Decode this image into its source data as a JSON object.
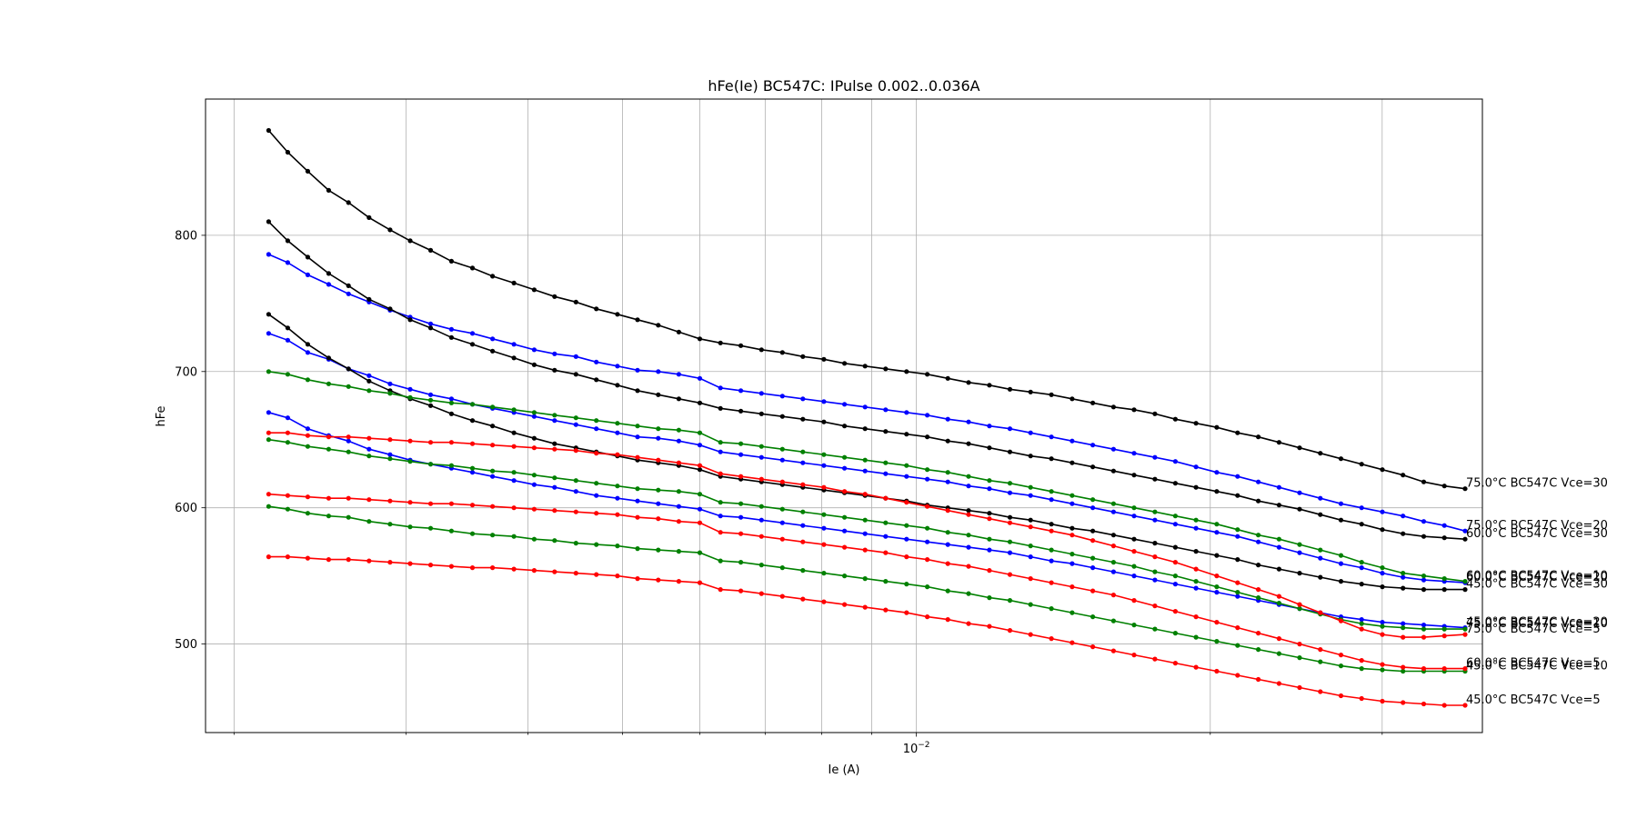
{
  "chart_data": {
    "type": "line",
    "title": "hFe(Ie) BC547C: IPulse 0.002..0.036A",
    "xlabel": "Ie (A)",
    "ylabel": "hFe",
    "xscale": "log",
    "xlim": [
      0.00187,
      0.038
    ],
    "ylim": [
      435,
      900
    ],
    "grid": true,
    "x_ticks": [
      {
        "value": 0.01,
        "label": "10",
        "exponent": "−2"
      }
    ],
    "x_minor_ticks": [
      0.002,
      0.003,
      0.004,
      0.005,
      0.006,
      0.007,
      0.008,
      0.009,
      0.02,
      0.03
    ],
    "y_ticks": [
      500,
      600,
      700,
      800
    ],
    "x": [
      0.00217,
      0.00227,
      0.00238,
      0.0025,
      0.00262,
      0.00275,
      0.00289,
      0.00303,
      0.00318,
      0.00334,
      0.00351,
      0.00368,
      0.00387,
      0.00406,
      0.00426,
      0.00448,
      0.0047,
      0.00494,
      0.00518,
      0.00544,
      0.00571,
      0.006,
      0.0063,
      0.00661,
      0.00694,
      0.00729,
      0.00765,
      0.00804,
      0.00844,
      0.00886,
      0.0093,
      0.00977,
      0.01026,
      0.01077,
      0.01131,
      0.01188,
      0.01247,
      0.01309,
      0.01375,
      0.01444,
      0.01516,
      0.01592,
      0.01671,
      0.01755,
      0.01842,
      0.01934,
      0.02031,
      0.02133,
      0.0224,
      0.02352,
      0.02469,
      0.02593,
      0.02722,
      0.02858,
      0.03001,
      0.03151,
      0.03309,
      0.03474,
      0.03648
    ],
    "series": [
      {
        "name": "75.0°C BC547C Vce=30",
        "color": "#000000",
        "values": [
          877,
          861,
          847,
          833,
          824,
          813,
          804,
          796,
          789,
          781,
          776,
          770,
          765,
          760,
          755,
          751,
          746,
          742,
          738,
          734,
          729,
          724,
          721,
          719,
          716,
          714,
          711,
          709,
          706,
          704,
          702,
          700,
          698,
          695,
          692,
          690,
          687,
          685,
          683,
          680,
          677,
          674,
          672,
          669,
          665,
          662,
          659,
          655,
          652,
          648,
          644,
          640,
          636,
          632,
          628,
          624,
          619,
          616,
          614
        ]
      },
      {
        "name": "75.0°C BC547C Vce=20",
        "color": "#0000ff",
        "values": [
          786,
          780,
          771,
          764,
          757,
          751,
          745,
          740,
          735,
          731,
          728,
          724,
          720,
          716,
          713,
          711,
          707,
          704,
          701,
          700,
          698,
          695,
          688,
          686,
          684,
          682,
          680,
          678,
          676,
          674,
          672,
          670,
          668,
          665,
          663,
          660,
          658,
          655,
          652,
          649,
          646,
          643,
          640,
          637,
          634,
          630,
          626,
          623,
          619,
          615,
          611,
          607,
          603,
          600,
          597,
          594,
          590,
          587,
          583
        ]
      },
      {
        "name": "60.0°C BC547C Vce=30",
        "color": "#000000",
        "values": [
          810,
          796,
          784,
          772,
          763,
          753,
          746,
          738,
          732,
          725,
          720,
          715,
          710,
          705,
          701,
          698,
          694,
          690,
          686,
          683,
          680,
          677,
          673,
          671,
          669,
          667,
          665,
          663,
          660,
          658,
          656,
          654,
          652,
          649,
          647,
          644,
          641,
          638,
          636,
          633,
          630,
          627,
          624,
          621,
          618,
          615,
          612,
          609,
          605,
          602,
          599,
          595,
          591,
          588,
          584,
          581,
          579,
          578,
          577
        ]
      },
      {
        "name": "60.0°C BC547C Vce=20",
        "color": "#0000ff",
        "values": [
          728,
          723,
          714,
          709,
          702,
          697,
          691,
          687,
          683,
          680,
          676,
          673,
          670,
          667,
          664,
          661,
          658,
          655,
          652,
          651,
          649,
          646,
          641,
          639,
          637,
          635,
          633,
          631,
          629,
          627,
          625,
          623,
          621,
          619,
          616,
          614,
          611,
          609,
          606,
          603,
          600,
          597,
          594,
          591,
          588,
          585,
          582,
          579,
          575,
          571,
          567,
          563,
          559,
          556,
          552,
          549,
          547,
          546,
          545
        ]
      },
      {
        "name": "45.0°C BC547C Vce=30",
        "color": "#000000",
        "values": [
          742,
          732,
          720,
          710,
          702,
          693,
          686,
          680,
          675,
          669,
          664,
          660,
          655,
          651,
          647,
          644,
          641,
          638,
          635,
          633,
          631,
          628,
          623,
          621,
          619,
          617,
          615,
          613,
          611,
          609,
          607,
          605,
          602,
          600,
          598,
          596,
          593,
          591,
          588,
          585,
          583,
          580,
          577,
          574,
          571,
          568,
          565,
          562,
          558,
          555,
          552,
          549,
          546,
          544,
          542,
          541,
          540,
          540,
          540
        ]
      },
      {
        "name": "60.0°C BC547C Vce=10",
        "color": "#008000",
        "values": [
          700,
          698,
          694,
          691,
          689,
          686,
          684,
          681,
          679,
          677,
          676,
          674,
          672,
          670,
          668,
          666,
          664,
          662,
          660,
          658,
          657,
          655,
          648,
          647,
          645,
          643,
          641,
          639,
          637,
          635,
          633,
          631,
          628,
          626,
          623,
          620,
          618,
          615,
          612,
          609,
          606,
          603,
          600,
          597,
          594,
          591,
          588,
          584,
          580,
          577,
          573,
          569,
          565,
          560,
          556,
          552,
          550,
          548,
          546
        ]
      },
      {
        "name": "45.0°C BC547C Vce=20",
        "color": "#0000ff",
        "values": [
          670,
          666,
          658,
          653,
          649,
          643,
          639,
          635,
          632,
          629,
          626,
          623,
          620,
          617,
          615,
          612,
          609,
          607,
          605,
          603,
          601,
          599,
          594,
          593,
          591,
          589,
          587,
          585,
          583,
          581,
          579,
          577,
          575,
          573,
          571,
          569,
          567,
          564,
          561,
          559,
          556,
          553,
          550,
          547,
          544,
          541,
          538,
          535,
          532,
          529,
          526,
          523,
          520,
          518,
          516,
          515,
          514,
          513,
          512
        ]
      },
      {
        "name": "75.0°C BC547C Vce=10",
        "color": "#008000",
        "values": [
          650,
          648,
          645,
          643,
          641,
          638,
          636,
          634,
          632,
          631,
          629,
          627,
          626,
          624,
          622,
          620,
          618,
          616,
          614,
          613,
          612,
          610,
          604,
          603,
          601,
          599,
          597,
          595,
          593,
          591,
          589,
          587,
          585,
          582,
          580,
          577,
          575,
          572,
          569,
          566,
          563,
          560,
          557,
          553,
          550,
          546,
          542,
          538,
          534,
          530,
          526,
          522,
          518,
          515,
          513,
          512,
          511,
          511,
          511
        ]
      },
      {
        "name": "75.0°C BC547C Vce=5",
        "color": "#ff0000",
        "values": [
          655,
          655,
          653,
          652,
          652,
          651,
          650,
          649,
          648,
          648,
          647,
          646,
          645,
          644,
          643,
          642,
          640,
          639,
          637,
          635,
          633,
          631,
          625,
          623,
          621,
          619,
          617,
          615,
          612,
          610,
          607,
          604,
          601,
          598,
          595,
          592,
          589,
          586,
          583,
          580,
          576,
          572,
          568,
          564,
          560,
          555,
          550,
          545,
          540,
          535,
          529,
          523,
          517,
          511,
          507,
          505,
          505,
          506,
          507
        ]
      },
      {
        "name": "45.0°C BC547C Vce=10",
        "color": "#008000",
        "values": [
          601,
          599,
          596,
          594,
          593,
          590,
          588,
          586,
          585,
          583,
          581,
          580,
          579,
          577,
          576,
          574,
          573,
          572,
          570,
          569,
          568,
          567,
          561,
          560,
          558,
          556,
          554,
          552,
          550,
          548,
          546,
          544,
          542,
          539,
          537,
          534,
          532,
          529,
          526,
          523,
          520,
          517,
          514,
          511,
          508,
          505,
          502,
          499,
          496,
          493,
          490,
          487,
          484,
          482,
          481,
          480,
          480,
          480,
          480
        ]
      },
      {
        "name": "60.0°C BC547C Vce=5",
        "color": "#ff0000",
        "values": [
          610,
          609,
          608,
          607,
          607,
          606,
          605,
          604,
          603,
          603,
          602,
          601,
          600,
          599,
          598,
          597,
          596,
          595,
          593,
          592,
          590,
          589,
          582,
          581,
          579,
          577,
          575,
          573,
          571,
          569,
          567,
          564,
          562,
          559,
          557,
          554,
          551,
          548,
          545,
          542,
          539,
          536,
          532,
          528,
          524,
          520,
          516,
          512,
          508,
          504,
          500,
          496,
          492,
          488,
          485,
          483,
          482,
          482,
          482
        ]
      },
      {
        "name": "45.0°C BC547C Vce=5",
        "color": "#ff0000",
        "values": [
          564,
          564,
          563,
          562,
          562,
          561,
          560,
          559,
          558,
          557,
          556,
          556,
          555,
          554,
          553,
          552,
          551,
          550,
          548,
          547,
          546,
          545,
          540,
          539,
          537,
          535,
          533,
          531,
          529,
          527,
          525,
          523,
          520,
          518,
          515,
          513,
          510,
          507,
          504,
          501,
          498,
          495,
          492,
          489,
          486,
          483,
          480,
          477,
          474,
          471,
          468,
          465,
          462,
          460,
          458,
          457,
          456,
          455,
          455
        ]
      }
    ]
  }
}
